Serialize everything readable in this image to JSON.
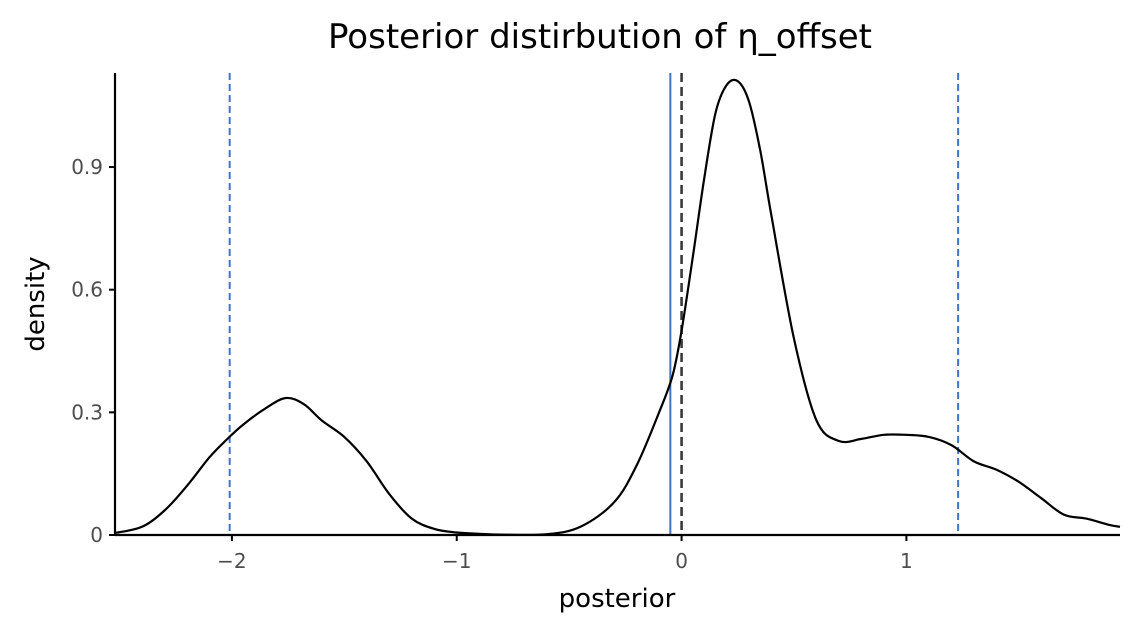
{
  "chart_data": {
    "type": "line",
    "title": "Posterior distirbution of η_offset",
    "xlabel": "posterior",
    "ylabel": "density",
    "xlim": [
      -2.52,
      1.95
    ],
    "ylim": [
      0,
      1.13
    ],
    "x_ticks": [
      {
        "value": -2,
        "label": "−2"
      },
      {
        "value": -1,
        "label": "−1"
      },
      {
        "value": 0,
        "label": "0"
      },
      {
        "value": 1,
        "label": "1"
      }
    ],
    "y_ticks": [
      {
        "value": 0,
        "label": "0"
      },
      {
        "value": 0.3,
        "label": "0.3"
      },
      {
        "value": 0.6,
        "label": "0.6"
      },
      {
        "value": 0.9,
        "label": "0.9"
      }
    ],
    "grid": false,
    "series": [
      {
        "color": "#000000",
        "x": [
          -2.52,
          -2.4,
          -2.3,
          -2.2,
          -2.1,
          -2.02,
          -1.95,
          -1.85,
          -1.76,
          -1.68,
          -1.6,
          -1.5,
          -1.4,
          -1.3,
          -1.2,
          -1.1,
          -1.0,
          -0.9,
          -0.8,
          -0.6,
          -0.45,
          -0.3,
          -0.2,
          -0.1,
          -0.04,
          0.0,
          0.05,
          0.1,
          0.15,
          0.2,
          0.25,
          0.3,
          0.35,
          0.4,
          0.5,
          0.6,
          0.7,
          0.8,
          0.9,
          1.0,
          1.1,
          1.2,
          1.3,
          1.4,
          1.5,
          1.6,
          1.7,
          1.8,
          1.9,
          1.95
        ],
        "y": [
          0.005,
          0.02,
          0.06,
          0.12,
          0.19,
          0.235,
          0.27,
          0.31,
          0.335,
          0.32,
          0.28,
          0.24,
          0.18,
          0.1,
          0.04,
          0.015,
          0.006,
          0.003,
          0.001,
          0.002,
          0.02,
          0.08,
          0.17,
          0.3,
          0.39,
          0.5,
          0.68,
          0.87,
          1.03,
          1.1,
          1.11,
          1.06,
          0.94,
          0.78,
          0.48,
          0.28,
          0.23,
          0.235,
          0.245,
          0.245,
          0.24,
          0.22,
          0.18,
          0.16,
          0.13,
          0.09,
          0.05,
          0.04,
          0.025,
          0.02
        ]
      }
    ],
    "reference_lines": [
      {
        "x": -2.01,
        "color": "#4472c4",
        "style": "dashed"
      },
      {
        "x": -0.05,
        "color": "#4472c4",
        "style": "solid"
      },
      {
        "x": 0,
        "color": "#3a3a3a",
        "style": "dashed"
      },
      {
        "x": 1.23,
        "color": "#4472c4",
        "style": "dashed"
      }
    ]
  }
}
